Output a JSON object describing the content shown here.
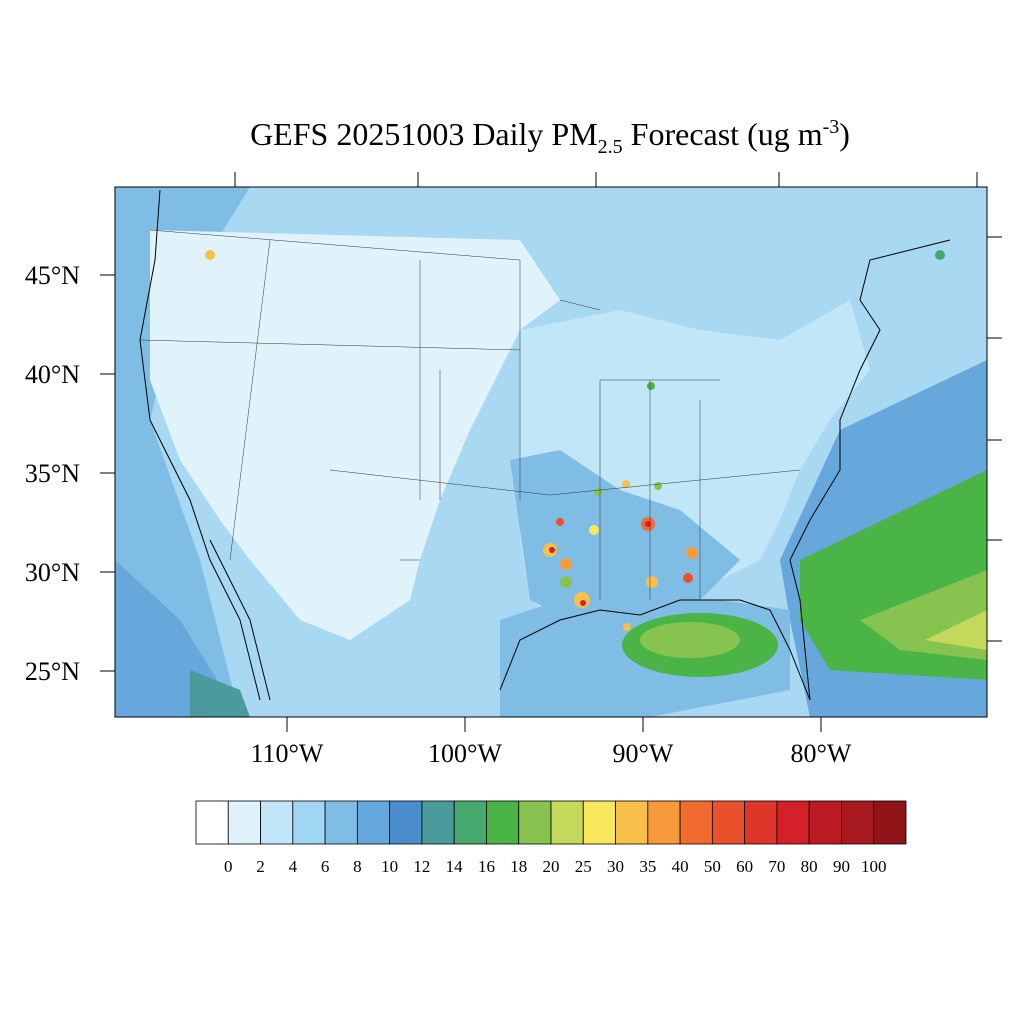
{
  "map": {
    "title": {
      "main": "GEFS 20251003 Daily PM",
      "sub": "2.5",
      "mid": " Forecast (ug m",
      "sup": "-3",
      "end": ")"
    },
    "lat_ticks": [
      {
        "value": 45,
        "label": "45°N"
      },
      {
        "value": 40,
        "label": "40°N"
      },
      {
        "value": 35,
        "label": "35°N"
      },
      {
        "value": 30,
        "label": "30°N"
      },
      {
        "value": 25,
        "label": "25°N"
      }
    ],
    "lon_ticks": [
      {
        "value": -110,
        "label": "110°W"
      },
      {
        "value": -100,
        "label": "100°W"
      },
      {
        "value": -90,
        "label": "90°W"
      },
      {
        "value": -80,
        "label": "80°W"
      }
    ],
    "colorbar": {
      "levels": [
        0,
        2,
        4,
        6,
        8,
        10,
        12,
        14,
        16,
        18,
        20,
        25,
        30,
        35,
        40,
        50,
        60,
        70,
        80,
        90,
        100
      ],
      "colors": [
        "#ffffff",
        "#e0f3fb",
        "#c0e6f7",
        "#a0d6f2",
        "#80bde5",
        "#66a7dc",
        "#4b8dcc",
        "#4b9a9c",
        "#48a96f",
        "#4ab447",
        "#86c34f",
        "#c4d85b",
        "#f8e65b",
        "#f8c04a",
        "#f79a3b",
        "#f26b2e",
        "#e8512c",
        "#de3729",
        "#d32029",
        "#bd1b24",
        "#a8191f",
        "#911518"
      ]
    }
  }
}
